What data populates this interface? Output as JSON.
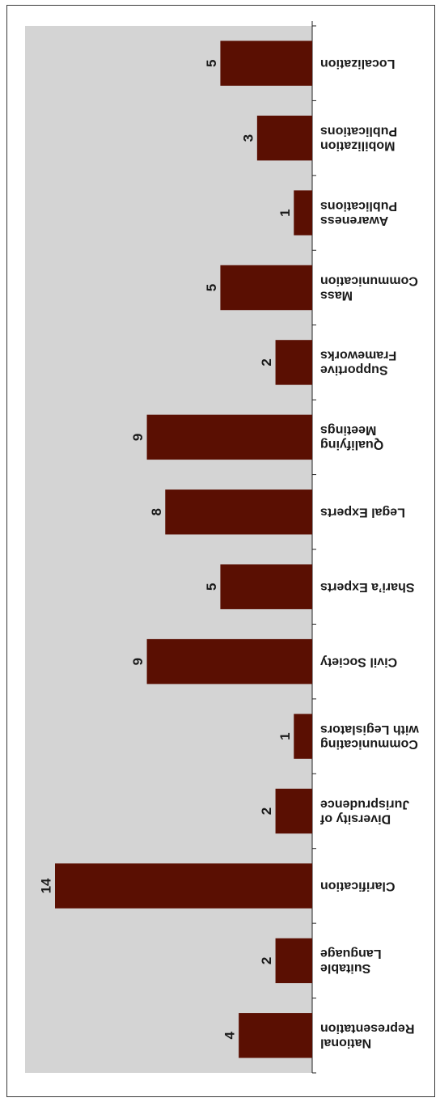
{
  "chart_data": {
    "type": "bar",
    "orientation": "horizontal",
    "rotated": "180deg",
    "categories": [
      [
        "National",
        "Representation"
      ],
      [
        "Suitable",
        "Language"
      ],
      [
        "Clarification"
      ],
      [
        "Diversity of",
        "Jurisprudence"
      ],
      [
        "Communicating",
        "with Legislators"
      ],
      [
        "Civil Society"
      ],
      [
        "Shari’a Experts"
      ],
      [
        "Legal Experts"
      ],
      [
        "Qualifying",
        "Meetings"
      ],
      [
        "Supportive",
        "Frameworks"
      ],
      [
        "Mass",
        "Communication"
      ],
      [
        "Awareness",
        "Publications"
      ],
      [
        "Mobilization",
        "Publications"
      ],
      [
        "Localization"
      ]
    ],
    "values": [
      4,
      2,
      14,
      2,
      1,
      9,
      5,
      8,
      9,
      2,
      5,
      1,
      3,
      5
    ],
    "value_labels": [
      "4",
      "2",
      "14",
      "2",
      "1",
      "9",
      "5",
      "8",
      "9",
      "2",
      "5",
      "1",
      "3",
      "5"
    ],
    "xlim": [
      0,
      14
    ],
    "grid": false,
    "legend": "none",
    "colors": {
      "bar": "#5a0f02",
      "plot_bg": "#d4d4d4",
      "axis": "#222222",
      "text": "#1a1a1a"
    }
  }
}
